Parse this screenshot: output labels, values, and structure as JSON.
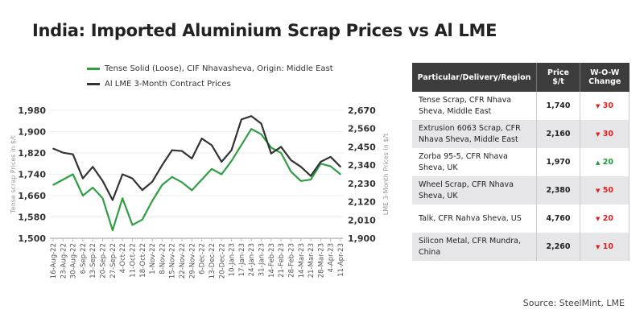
{
  "title": "India: Imported Aluminium Scrap Prices vs Al LME",
  "source": "Source: SteelMint, LME",
  "colors": {
    "green": "#2ea043",
    "black": "#333333",
    "header_bg": "#3d3d3d",
    "down": "#e02020",
    "up": "#1a9a3a"
  },
  "chart_data": {
    "type": "line",
    "title": "",
    "ylabel": "Tense scrap Prices in $/t",
    "y2label": "LME 3-Month Prices in $/t",
    "ylim": [
      1500,
      1980
    ],
    "y2lim": [
      1900,
      2670
    ],
    "yticks": [
      "1,500",
      "1,580",
      "1,660",
      "1,740",
      "1,820",
      "1,900",
      "1,980"
    ],
    "y2ticks": [
      "1,900",
      "2,010",
      "2,120",
      "2,230",
      "2,340",
      "2,450",
      "2,560",
      "2,670"
    ],
    "grid": true,
    "legend": "top",
    "x": [
      "16-Aug-22",
      "23-Aug-22",
      "30-Aug-22",
      "6-Sep-22",
      "13-Sep-22",
      "20-Sep-22",
      "27-Sep-22",
      "4-Oct-22",
      "11-Oct-22",
      "18-Oct-22",
      "1-Nov-22",
      "8-Nov-22",
      "15-Nov-22",
      "22-Nov-22",
      "29-Nov-22",
      "6-Dec-22",
      "13-Dec-22",
      "20-Dec-22",
      "10-Jan-23",
      "17-Jan-23",
      "24-Jan-23",
      "31-Jan-23",
      "14-Feb-23",
      "21-Feb-23",
      "28-Feb-23",
      "14-Mar-23",
      "21-Mar-23",
      "28-Mar-23",
      "4-Apr-23",
      "11-Apr-23"
    ],
    "series": [
      {
        "name": "Tense Solid (Loose), CIF Nhavasheva, Origin: Middle East",
        "axis": "left",
        "color": "#2ea043",
        "values": [
          1700,
          1720,
          1740,
          1660,
          1690,
          1650,
          1530,
          1650,
          1550,
          1570,
          1640,
          1700,
          1730,
          1710,
          1680,
          1720,
          1760,
          1740,
          1790,
          1850,
          1910,
          1890,
          1840,
          1820,
          1750,
          1715,
          1720,
          1780,
          1770,
          1740
        ]
      },
      {
        "name": "Al LME 3-Month Contract Prices",
        "axis": "right",
        "color": "#333333",
        "values": [
          2440,
          2415,
          2405,
          2260,
          2330,
          2245,
          2130,
          2285,
          2260,
          2190,
          2240,
          2340,
          2430,
          2425,
          2380,
          2500,
          2460,
          2360,
          2430,
          2615,
          2635,
          2590,
          2410,
          2450,
          2370,
          2330,
          2275,
          2360,
          2390,
          2330
        ]
      }
    ]
  },
  "table": {
    "headers": [
      "Particular/Delivery/Region",
      "Price $/t",
      "W-O-W Change"
    ],
    "rows": [
      {
        "item": "Tense Scrap, CFR Nhava Sheva, Middle East",
        "price": "1,740",
        "dir": "down",
        "arrow": "",
        "change": "30"
      },
      {
        "item": "Extrusion 6063 Scrap, CFR Nhava Sheva, Middle East",
        "price": "2,160",
        "dir": "down",
        "arrow": "",
        "change": "30"
      },
      {
        "item": "Zorba 95-5, CFR Nhava Sheva, UK",
        "price": "1,970",
        "dir": "up",
        "arrow": "",
        "change": "20"
      },
      {
        "item": "Wheel Scrap, CFR Nhava Sheva, UK",
        "price": "2,380",
        "dir": "down",
        "arrow": "",
        "change": "50"
      },
      {
        "item": "Talk, CFR Nahva Sheva, US",
        "price": "4,760",
        "dir": "down",
        "arrow": "",
        "change": "20"
      },
      {
        "item": "Silicon Metal, CFR Mundra, China",
        "price": "2,260",
        "dir": "down",
        "arrow": "",
        "change": "10"
      }
    ]
  }
}
